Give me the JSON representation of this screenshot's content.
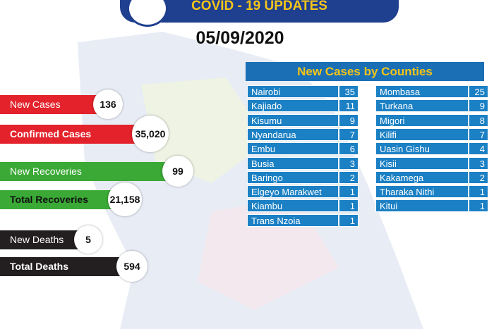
{
  "header": {
    "title": "COVID - 19 UPDATES",
    "date": "05/09/2020"
  },
  "stats": [
    {
      "label": "New Cases",
      "value": "136"
    },
    {
      "label": "Confirmed Cases",
      "value": "35,020"
    },
    {
      "label": "New Recoveries",
      "value": "99"
    },
    {
      "label": "Total Recoveries",
      "value": "21,158"
    },
    {
      "label": "New Deaths",
      "value": "5"
    },
    {
      "label": "Total Deaths",
      "value": "594"
    }
  ],
  "counties": {
    "title": "New Cases by Counties",
    "left": [
      [
        "Nairobi",
        35
      ],
      [
        "Kajiado",
        11
      ],
      [
        "Kisumu",
        9
      ],
      [
        "Nyandarua",
        7
      ],
      [
        "Embu",
        6
      ],
      [
        "Busia",
        3
      ],
      [
        "Baringo",
        2
      ],
      [
        "Elgeyo Marakwet",
        1
      ],
      [
        "Kiambu",
        1
      ],
      [
        "Trans Nzoia",
        1
      ]
    ],
    "right": [
      [
        "Mombasa",
        25
      ],
      [
        "Turkana",
        9
      ],
      [
        "Migori",
        8
      ],
      [
        "Kilifi",
        7
      ],
      [
        "Uasin Gishu",
        4
      ],
      [
        "Kisii",
        3
      ],
      [
        "Kakamega",
        2
      ],
      [
        "Tharaka Nithi",
        1
      ],
      [
        "Kitui",
        1
      ]
    ]
  }
}
